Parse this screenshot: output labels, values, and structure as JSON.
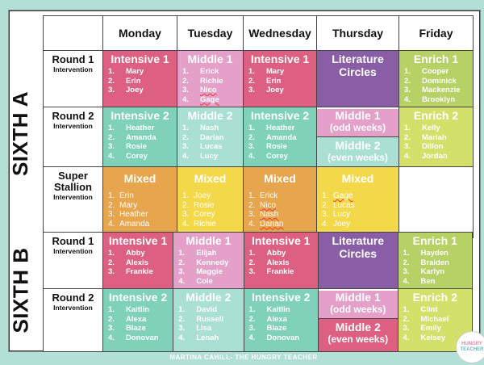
{
  "days": [
    "Monday",
    "Tuesday",
    "Wednesday",
    "Thursday",
    "Friday"
  ],
  "sections": [
    {
      "label": "SIXTH A",
      "rows": [
        {
          "label_main": "Round 1",
          "label_sub": "Intervention",
          "cells": [
            {
              "title": "Intensive 1",
              "color": "pink",
              "students": [
                "Mary",
                "Erin",
                "Joey"
              ]
            },
            {
              "title": "Middle 1",
              "color": "lpink",
              "students": [
                "Erick",
                "Richie",
                "Nico",
                "Gage"
              ]
            },
            {
              "title": "Intensive 1",
              "color": "pink",
              "students": [
                "Mary",
                "Erin",
                "Joey"
              ]
            },
            {
              "title": "Literature Circles",
              "color": "purple",
              "students": []
            },
            {
              "title": "Enrich 1",
              "color": "green",
              "students": [
                "Cooper",
                "Dominick",
                "Mackenzie",
                "Brooklyn"
              ]
            }
          ]
        },
        {
          "label_main": "Round 2",
          "label_sub": "Intervention",
          "cells": [
            {
              "title": "Intensive 2",
              "color": "teal",
              "students": [
                "Heather",
                "Amanda",
                "Rosie",
                "Corey"
              ]
            },
            {
              "title": "Middle 2",
              "color": "lteal",
              "students": [
                "Nash",
                "Darian",
                "Lucas",
                "Lucy"
              ]
            },
            {
              "title": "Intensive 2",
              "color": "teal",
              "students": [
                "Heather",
                "Amanda",
                "Rosie",
                "Corey"
              ]
            },
            {
              "split": [
                {
                  "title": "Middle 1",
                  "subtitle": "(odd weeks)",
                  "color": "lpink"
                },
                {
                  "title": "Middle 2",
                  "subtitle": "(even weeks)",
                  "color": "lteal"
                }
              ]
            },
            {
              "title": "Enrich 2",
              "color": "lime",
              "students": [
                "Kelly",
                "Mariah",
                "Dillon",
                "Jordan"
              ]
            }
          ]
        },
        {
          "label_main": "Super Stallion",
          "label_sub": "Intervention",
          "cells": [
            {
              "title": "Mixed",
              "color": "orange",
              "students": [
                "Erin",
                "Mary",
                "Heather",
                "Amanda"
              ]
            },
            {
              "title": "Mixed",
              "color": "yellow",
              "students": [
                "Joey",
                "Rosie",
                "Corey",
                "Richie"
              ]
            },
            {
              "title": "Mixed",
              "color": "orange",
              "students": [
                "Erick",
                "Nico",
                "Nash",
                "Darian"
              ]
            },
            {
              "title": "Mixed",
              "color": "yellow",
              "students": [
                "Gage",
                "Lucas",
                "Lucy",
                "Joey"
              ]
            },
            {
              "empty": true
            }
          ]
        }
      ]
    },
    {
      "label": "SIXTH B",
      "rows": [
        {
          "label_main": "Round 1",
          "label_sub": "Intervention",
          "cells": [
            {
              "title": "Intensive 1",
              "color": "pink",
              "students": [
                "Abby",
                "Alexis",
                "Frankie"
              ]
            },
            {
              "title": "Middle 1",
              "color": "lpink",
              "students": [
                "Elijah",
                "Kennedy",
                "Maggie",
                "Cole"
              ]
            },
            {
              "title": "Intensive 1",
              "color": "pink",
              "students": [
                "Abby",
                "Alexis",
                "Frankie"
              ]
            },
            {
              "title": "Literature Circles",
              "color": "purple",
              "students": []
            },
            {
              "title": "Enrich 1",
              "color": "green",
              "students": [
                "Hayden",
                "Braiden",
                "Karlyn",
                "Ben"
              ]
            }
          ]
        },
        {
          "label_main": "Round 2",
          "label_sub": "Intervention",
          "cells": [
            {
              "title": "Intensive 2",
              "color": "teal",
              "students": [
                "Kaitlin",
                "Alexa",
                "Blaze",
                "Donovan"
              ]
            },
            {
              "title": "Middle 2",
              "color": "lteal",
              "students": [
                "David",
                "Russell",
                "Lisa",
                "Lenah"
              ]
            },
            {
              "title": "Intensive 2",
              "color": "teal",
              "students": [
                "Kaitlin",
                "Alexa",
                "Blaze",
                "Donovan"
              ]
            },
            {
              "split": [
                {
                  "title": "Middle 1",
                  "subtitle": "(odd weeks)",
                  "color": "lpink"
                },
                {
                  "title": "Middle 2",
                  "subtitle": "(even weeks)",
                  "color": "pink"
                }
              ]
            },
            {
              "title": "Enrich 2",
              "color": "lime",
              "students": [
                "Clint",
                "Michael",
                "Emily",
                "Kelsey"
              ]
            }
          ]
        }
      ]
    }
  ],
  "footer": "MARTINA CAHILL- THE HUNGRY TEACHER",
  "logo": {
    "line1": "HUNGRY",
    "line2": "TEACHER"
  },
  "colors": {
    "background": "#b3e0d6",
    "pink": "#dd6083",
    "light_pink": "#e4a0c8",
    "purple": "#8a5ea6",
    "green": "#b6d166",
    "teal": "#7fd1b9",
    "light_teal": "#a9e0d3",
    "lime": "#d3e06a",
    "orange": "#e7a64d",
    "yellow": "#f3d94a"
  }
}
